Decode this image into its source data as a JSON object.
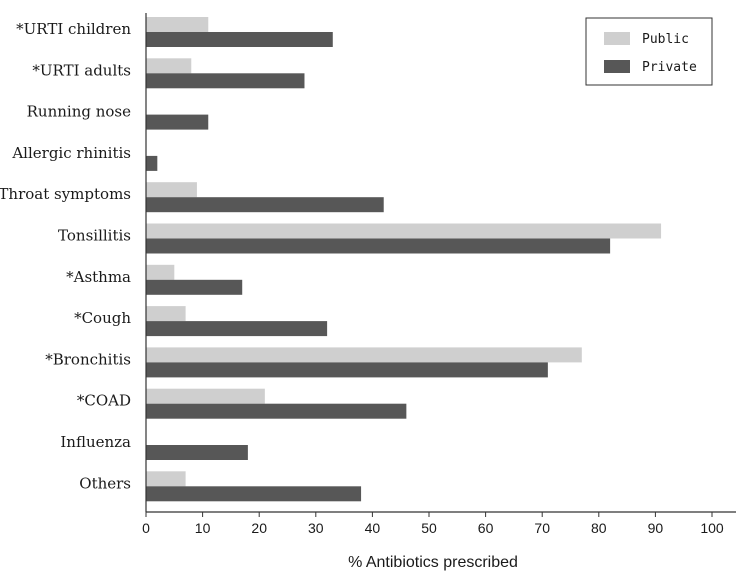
{
  "chart_data": {
    "type": "bar",
    "orientation": "horizontal",
    "categories": [
      "*URTI children",
      "*URTI adults",
      "Running nose",
      "Allergic rhinitis",
      "*Throat symptoms",
      "Tonsillitis",
      "*Asthma",
      "*Cough",
      "*Bronchitis",
      "*COAD",
      "Influenza",
      "Others"
    ],
    "series": [
      {
        "name": "Public",
        "color": "#cfcfcf",
        "values": [
          11,
          8,
          0,
          0,
          9,
          91,
          5,
          7,
          77,
          21,
          0,
          7
        ]
      },
      {
        "name": "Private",
        "color": "#575757",
        "values": [
          33,
          28,
          11,
          2,
          42,
          82,
          17,
          32,
          71,
          46,
          18,
          38
        ]
      }
    ],
    "xlabel": "% Antibiotics prescribed",
    "ylabel": "",
    "title": "",
    "xlim": [
      0,
      100
    ],
    "xticks": [
      "0",
      "10",
      "20",
      "30",
      "40",
      "50",
      "60",
      "70",
      "80",
      "90",
      "100"
    ],
    "grid": false,
    "legend_position": "top-right"
  }
}
